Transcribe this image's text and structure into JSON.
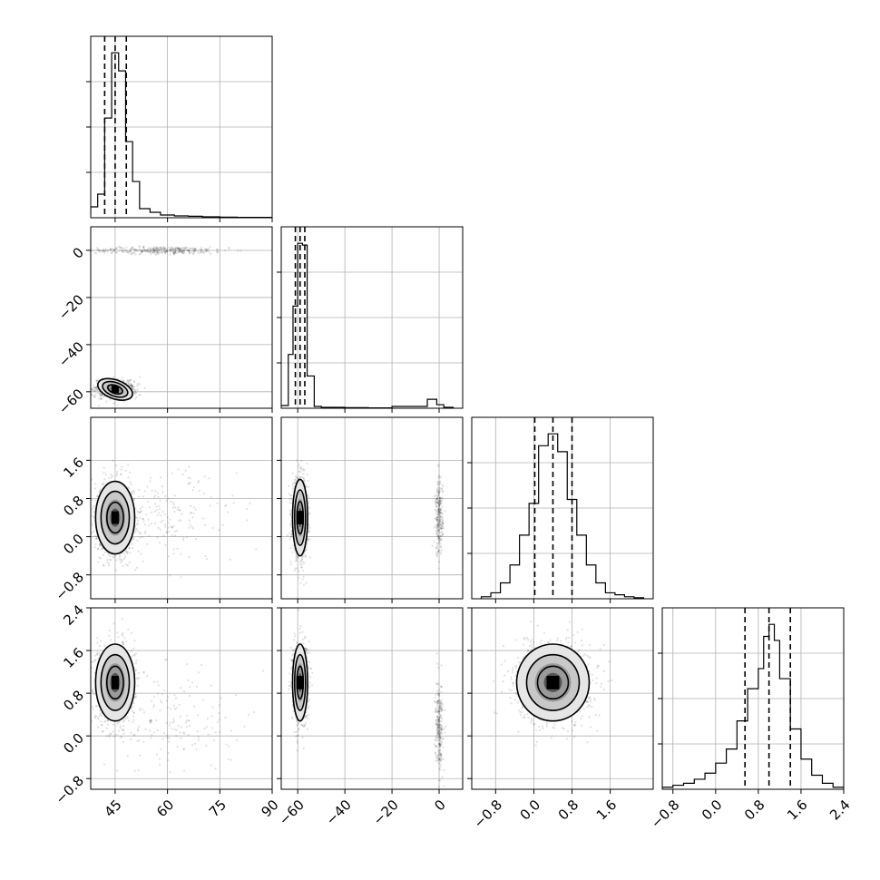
{
  "chart_data": {
    "type": "corner",
    "title": "",
    "grid": true,
    "variables": [
      {
        "range": [
          38,
          90
        ],
        "ticks": [
          45,
          60,
          75,
          90
        ],
        "tick_labels": [
          "45",
          "60",
          "75",
          "90"
        ],
        "quantiles": [
          42.0,
          45.0,
          48.2
        ],
        "hist_bins": [
          36,
          38,
          40,
          42,
          44,
          46,
          48,
          50,
          52,
          55,
          58,
          62,
          66,
          70,
          75,
          80,
          90
        ],
        "hist_counts": [
          0.02,
          0.06,
          0.13,
          0.55,
          0.91,
          0.81,
          0.42,
          0.2,
          0.05,
          0.03,
          0.015,
          0.01,
          0.008,
          0.005,
          0.003,
          0.002
        ]
      },
      {
        "range": [
          -67,
          10
        ],
        "ticks": [
          -60,
          -40,
          -20,
          0
        ],
        "tick_labels": [
          "−60",
          "−40",
          "−20",
          "0"
        ],
        "quantiles": [
          -61.0,
          -59.0,
          -57.0
        ],
        "hist_bins": [
          -68,
          -64,
          -62,
          -60,
          -58,
          -56,
          -53,
          -50,
          -40,
          -30,
          -20,
          -5,
          -1,
          2,
          6
        ],
        "hist_counts": [
          0.015,
          0.3,
          0.57,
          0.92,
          0.91,
          0.18,
          0.01,
          0.005,
          0.003,
          0.002,
          0.01,
          0.05,
          0.02,
          0.005
        ]
      },
      {
        "range": [
          -1.3,
          2.5
        ],
        "ticks": [
          -0.8,
          0.0,
          0.8,
          1.6
        ],
        "tick_labels": [
          "−0.8",
          "0.0",
          "0.8",
          "1.6"
        ],
        "quantiles": [
          0.02,
          0.4,
          0.8
        ],
        "hist_bins": [
          -1.1,
          -0.9,
          -0.7,
          -0.5,
          -0.3,
          -0.1,
          0.1,
          0.3,
          0.5,
          0.7,
          0.9,
          1.1,
          1.3,
          1.5,
          1.7,
          1.9,
          2.1,
          2.3
        ],
        "hist_counts": [
          0.01,
          0.03,
          0.08,
          0.17,
          0.32,
          0.48,
          0.77,
          0.83,
          0.74,
          0.5,
          0.32,
          0.17,
          0.08,
          0.03,
          0.02,
          0.01,
          0.005
        ]
      },
      {
        "range": [
          -1.0,
          2.4
        ],
        "ticks": [
          -0.8,
          0.0,
          0.8,
          1.6,
          2.4
        ],
        "tick_labels": [
          "−0.8",
          "0.0",
          "0.8",
          "1.6",
          "2.4"
        ],
        "quantiles": [
          0.55,
          1.0,
          1.4
        ],
        "hist_bins": [
          -1.0,
          -0.8,
          -0.6,
          -0.4,
          -0.2,
          0.0,
          0.2,
          0.4,
          0.6,
          0.8,
          0.9,
          1.0,
          1.1,
          1.2,
          1.4,
          1.6,
          1.8,
          2.0,
          2.2,
          2.4
        ],
        "hist_counts": [
          0.01,
          0.02,
          0.03,
          0.05,
          0.08,
          0.13,
          0.2,
          0.34,
          0.5,
          0.6,
          0.76,
          0.82,
          0.74,
          0.55,
          0.3,
          0.15,
          0.07,
          0.03,
          0.01
        ]
      }
    ],
    "pairs": [
      {
        "x": 0,
        "y": 1,
        "modes": [
          {
            "cx": 45,
            "cy": -59,
            "sx": 2.6,
            "sy": 2.0,
            "rot": -0.35,
            "n": 900
          },
          {
            "cx": 58,
            "cy": 0,
            "sx": 10,
            "sy": 0.8,
            "rot": 0,
            "n": 350
          }
        ]
      },
      {
        "x": 0,
        "y": 2,
        "modes": [
          {
            "cx": 45,
            "cy": 0.4,
            "sx": 2.8,
            "sy": 0.38,
            "rot": 0,
            "n": 1100
          },
          {
            "cx": 60,
            "cy": 0.4,
            "sx": 10,
            "sy": 0.5,
            "rot": 0,
            "n": 180
          }
        ]
      },
      {
        "x": 1,
        "y": 2,
        "modes": [
          {
            "cx": -59,
            "cy": 0.4,
            "sx": 1.6,
            "sy": 0.4,
            "rot": 0,
            "n": 1100
          },
          {
            "cx": 0,
            "cy": 0.4,
            "sx": 0.8,
            "sy": 0.4,
            "rot": 0,
            "n": 260
          }
        ]
      },
      {
        "x": 0,
        "y": 3,
        "modes": [
          {
            "cx": 45,
            "cy": 1.0,
            "sx": 2.8,
            "sy": 0.36,
            "rot": 0,
            "n": 1100
          },
          {
            "cx": 60,
            "cy": 0.3,
            "sx": 10,
            "sy": 0.5,
            "rot": 0,
            "n": 180
          }
        ]
      },
      {
        "x": 1,
        "y": 3,
        "modes": [
          {
            "cx": -59,
            "cy": 1.0,
            "sx": 1.6,
            "sy": 0.36,
            "rot": 0,
            "n": 1100
          },
          {
            "cx": 0,
            "cy": 0.2,
            "sx": 0.8,
            "sy": 0.4,
            "rot": 0,
            "n": 260
          }
        ]
      },
      {
        "x": 2,
        "y": 3,
        "modes": [
          {
            "cx": 0.4,
            "cy": 1.0,
            "sx": 0.38,
            "sy": 0.36,
            "rot": 0,
            "n": 1500
          }
        ]
      }
    ]
  }
}
